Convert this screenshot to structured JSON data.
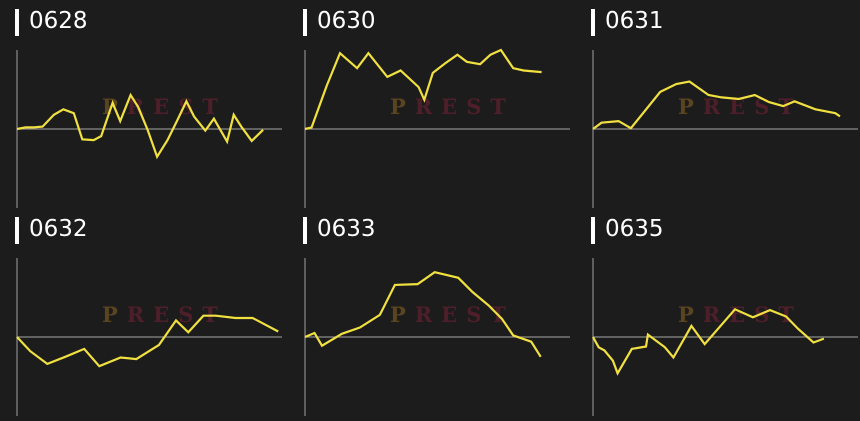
{
  "watermark": "PREST",
  "colors": {
    "background": "#1c1c1c",
    "line": "#f0e040",
    "axis": "#8a8a8a",
    "title": "#ffffff",
    "watermark_p": "#5a4520",
    "watermark_rest": "#4e1f2a"
  },
  "chart_data": [
    {
      "type": "line",
      "title": "0628",
      "ylim": [
        -1,
        1
      ],
      "xlim": [
        0,
        28
      ],
      "grid": false,
      "x": [
        0,
        0.9,
        1.8,
        2.7,
        3.9,
        4.9,
        6,
        6.9,
        8.1,
        8.9,
        10.1,
        10.9,
        12,
        12.8,
        13.8,
        14.8,
        15.9,
        16.9,
        17.9,
        18.7,
        19.9,
        20.8,
        22.2,
        22.9,
        23.7,
        24.8,
        26
      ],
      "values": [
        0,
        0.02,
        0.02,
        0.03,
        0.18,
        0.25,
        0.2,
        -0.13,
        -0.14,
        -0.09,
        0.33,
        0.1,
        0.43,
        0.28,
        -0.01,
        -0.35,
        -0.14,
        0.1,
        0.35,
        0.16,
        -0.02,
        0.13,
        -0.16,
        0.18,
        0.03,
        -0.15,
        -0.01
      ]
    },
    {
      "type": "line",
      "title": "0630",
      "ylim": [
        -1,
        1
      ],
      "xlim": [
        0,
        28
      ],
      "grid": false,
      "x": [
        0,
        0.7,
        2.3,
        3.7,
        5.5,
        6.7,
        8.7,
        10.1,
        12,
        12.6,
        13.5,
        14.8,
        16.1,
        17.1,
        18.5,
        19.6,
        20.7,
        22,
        23.1,
        25
      ],
      "values": [
        0,
        0.02,
        0.55,
        0.96,
        0.77,
        0.96,
        0.66,
        0.74,
        0.53,
        0.37,
        0.71,
        0.83,
        0.94,
        0.85,
        0.82,
        0.94,
        1.0,
        0.77,
        0.74,
        0.72
      ]
    },
    {
      "type": "line",
      "title": "0631",
      "ylim": [
        -1,
        1
      ],
      "xlim": [
        0,
        28
      ],
      "grid": false,
      "x": [
        0,
        0.9,
        2.7,
        4,
        7.1,
        8.8,
        10.2,
        12.2,
        13.6,
        15.4,
        17.1,
        18.6,
        20.1,
        21.3,
        23.5,
        25.6,
        26.1
      ],
      "values": [
        0,
        0.08,
        0.1,
        0.01,
        0.47,
        0.57,
        0.6,
        0.43,
        0.4,
        0.38,
        0.43,
        0.34,
        0.29,
        0.35,
        0.25,
        0.2,
        0.16
      ]
    },
    {
      "type": "line",
      "title": "0632",
      "ylim": [
        -1,
        1
      ],
      "xlim": [
        0,
        28
      ],
      "grid": false,
      "x": [
        0,
        1.4,
        3.2,
        5.1,
        7.1,
        8.7,
        10.95,
        12.6,
        15,
        16.8,
        18.1,
        19.7,
        21,
        23.1,
        24.9,
        27.6
      ],
      "values": [
        0,
        -0.18,
        -0.34,
        -0.25,
        -0.15,
        -0.37,
        -0.26,
        -0.28,
        -0.1,
        0.21,
        0.06,
        0.27,
        0.27,
        0.24,
        0.24,
        0.07
      ]
    },
    {
      "type": "line",
      "title": "0633",
      "ylim": [
        -1,
        1
      ],
      "xlim": [
        0,
        28
      ],
      "grid": false,
      "x": [
        0,
        1,
        1.8,
        3.9,
        5.8,
        7.9,
        9.5,
        11.9,
        13.7,
        16.2,
        17.7,
        19.4,
        20.8,
        22,
        23.9,
        24.9
      ],
      "values": [
        0,
        0.05,
        -0.11,
        0.04,
        0.12,
        0.28,
        0.66,
        0.67,
        0.82,
        0.75,
        0.57,
        0.4,
        0.23,
        0.02,
        -0.06,
        -0.25
      ]
    },
    {
      "type": "line",
      "title": "0635",
      "ylim": [
        -1,
        1
      ],
      "xlim": [
        0,
        28
      ],
      "grid": false,
      "x": [
        0,
        0.6,
        1.2,
        2.1,
        2.6,
        4.1,
        5.6,
        5.8,
        7.6,
        8.5,
        10.4,
        11.8,
        15,
        16.9,
        18.7,
        20.4,
        21.7,
        23.3,
        24.4
      ],
      "values": [
        0,
        -0.13,
        -0.17,
        -0.3,
        -0.46,
        -0.15,
        -0.12,
        0.03,
        -0.13,
        -0.26,
        0.14,
        -0.09,
        0.35,
        0.25,
        0.34,
        0.26,
        0.1,
        -0.07,
        -0.02
      ]
    }
  ]
}
